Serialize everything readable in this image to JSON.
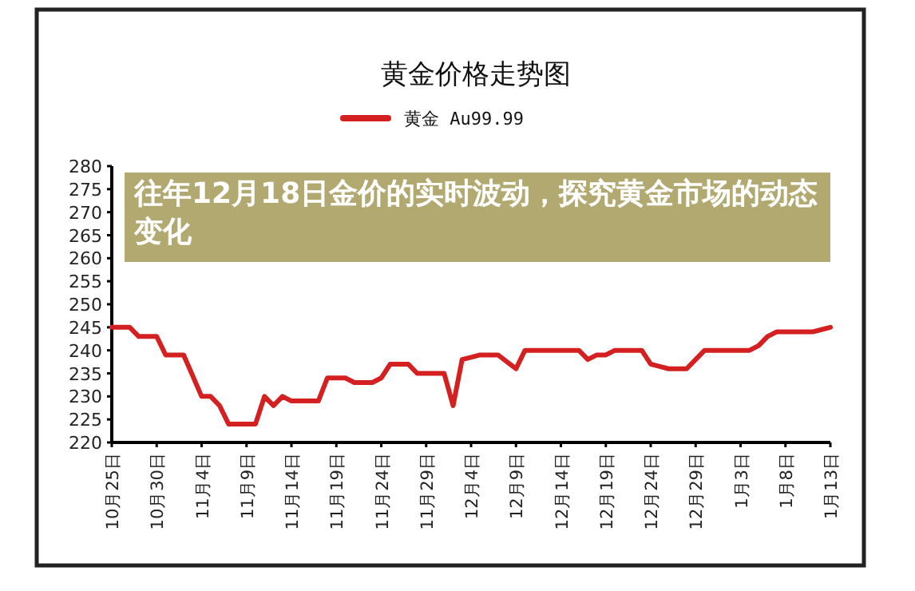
{
  "chart_data": {
    "type": "line",
    "title": "黄金价格走势图",
    "annotations": [
      "往年12月18日金价的实时波动，探究黄金市场的动态变化"
    ],
    "categories": [
      "10月25日",
      null,
      null,
      null,
      null,
      "10月30日",
      null,
      null,
      null,
      null,
      "11月4日",
      null,
      null,
      null,
      null,
      "11月9日",
      null,
      null,
      null,
      null,
      "11月14日",
      null,
      null,
      null,
      null,
      "11月19日",
      null,
      null,
      null,
      null,
      "11月24日",
      null,
      null,
      null,
      null,
      "11月29日",
      null,
      null,
      null,
      null,
      "12月4日",
      null,
      null,
      null,
      null,
      "12月9日",
      null,
      null,
      null,
      null,
      "12月14日",
      null,
      null,
      null,
      null,
      "12月19日",
      null,
      null,
      null,
      null,
      "12月24日",
      null,
      null,
      null,
      null,
      "12月29日",
      null,
      null,
      null,
      null,
      "1月3日",
      null,
      null,
      null,
      null,
      "1月8日",
      null,
      null,
      null,
      null,
      "1月13日"
    ],
    "series": [
      {
        "name": "黄金 Au99.99",
        "color": "#d42020",
        "values": [
          245,
          245,
          245,
          243,
          243,
          243,
          239,
          239,
          239,
          234.5,
          230,
          230,
          228,
          224,
          224,
          224,
          224,
          230,
          228,
          230,
          229,
          229,
          229,
          229,
          234,
          234,
          234,
          233,
          233,
          233,
          234,
          237,
          237,
          237,
          235,
          235,
          235,
          235,
          228,
          238,
          238.5,
          239,
          239,
          239,
          237.5,
          236,
          240,
          240,
          240,
          240,
          240,
          240,
          240,
          238,
          239,
          239,
          240,
          240,
          240,
          240,
          237,
          236.5,
          236,
          236,
          236,
          238,
          240,
          240,
          240,
          240,
          240,
          240,
          241,
          243,
          244,
          244,
          244,
          244,
          244,
          244.5,
          245
        ]
      }
    ],
    "ylim": [
      220,
      280
    ],
    "yticks": [
      220,
      225,
      230,
      235,
      240,
      245,
      250,
      255,
      260,
      265,
      270,
      275,
      280
    ],
    "legend": "top",
    "grid": false,
    "marker": "none",
    "line_style": "solid"
  }
}
